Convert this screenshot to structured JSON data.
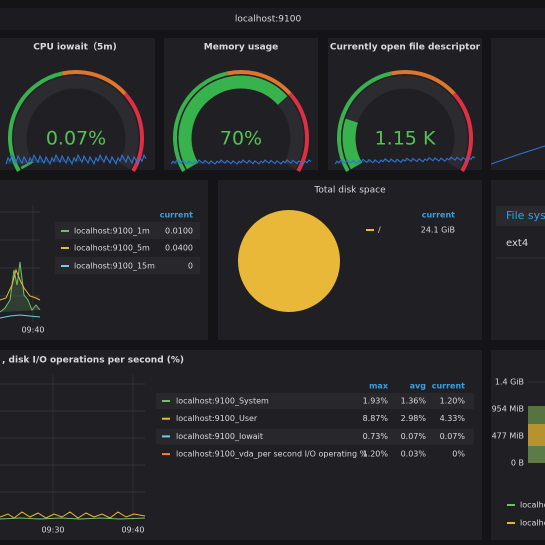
{
  "header": {
    "title": "localhost:9100"
  },
  "gauges": [
    {
      "title": "CPU iowait（5m)",
      "value": "0.07%"
    },
    {
      "title": "Memory usage",
      "value": "70%"
    },
    {
      "title": "Currently open file descriptor",
      "value": "1.15 K"
    }
  ],
  "load_panel": {
    "legend_header": "current",
    "rows": [
      {
        "name": "localhost:9100_1m",
        "current": "0.0100"
      },
      {
        "name": "localhost:9100_5m",
        "current": "0.0400"
      },
      {
        "name": "localhost:9100_15m",
        "current": "0"
      }
    ],
    "xtick": "09:40"
  },
  "disk_panel": {
    "title": "Total disk space",
    "legend_header": "current",
    "rows": [
      {
        "name": "/",
        "current": "24.1 GiB"
      }
    ]
  },
  "fs_panel": {
    "header": "File sys",
    "rows": [
      "ext4"
    ]
  },
  "io_panel": {
    "title": ", disk I/O operations per second (%)",
    "headers": [
      "max",
      "avg",
      "current"
    ],
    "rows": [
      {
        "name": "localhost:9100_System",
        "values": [
          "1.93%",
          "1.36%",
          "1.20%"
        ]
      },
      {
        "name": "localhost:9100_User",
        "values": [
          "8.87%",
          "2.98%",
          "4.33%"
        ]
      },
      {
        "name": "localhost:9100_Iowait",
        "values": [
          "0.73%",
          "0.07%",
          "0.07%"
        ]
      },
      {
        "name": "localhost:9100_vda_per second I/O operating %",
        "values": [
          "1.20%",
          "0.03%",
          "0%"
        ]
      }
    ],
    "xticks": [
      "09:30",
      "09:40"
    ]
  },
  "mem_panel": {
    "yticks": [
      "1.4 GiB",
      "954 MiB",
      "477 MiB",
      "0 B"
    ],
    "legend": [
      "localho",
      "localho"
    ]
  }
}
